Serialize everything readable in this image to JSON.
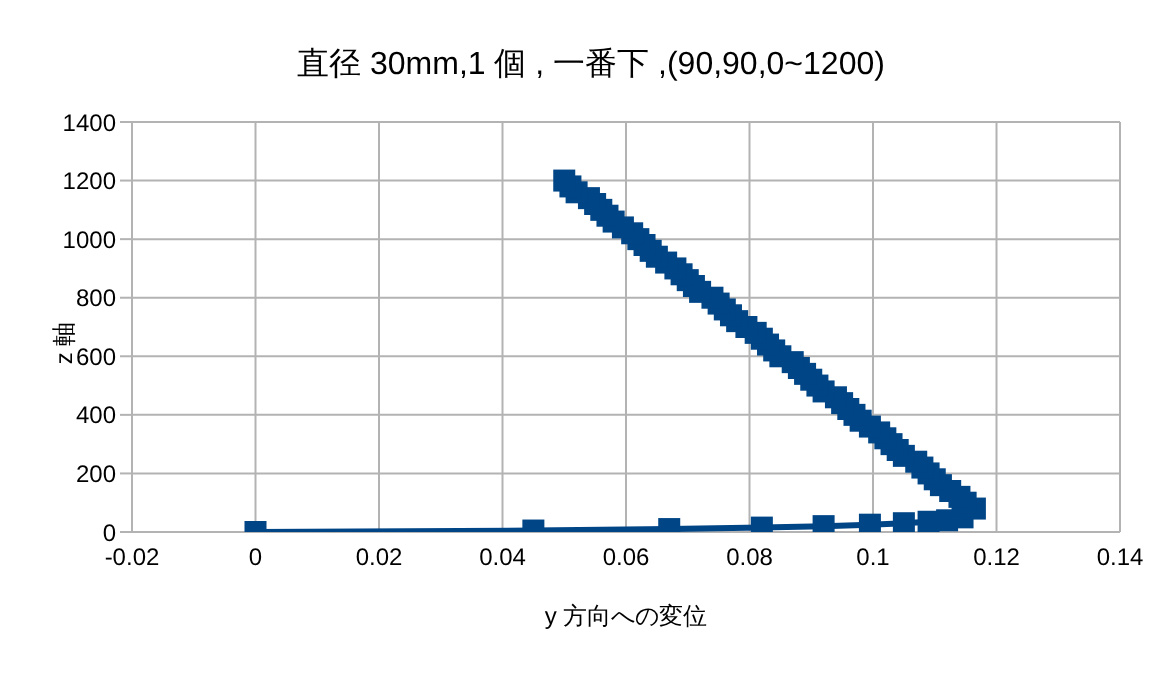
{
  "chart_data": {
    "type": "line",
    "title": "直径 30mm,1 個 , 一番下 ,(90,90,0~1200)",
    "xlabel": "y 方向への変位",
    "ylabel": "z 軸",
    "x": [
      0,
      0.045,
      0.067,
      0.082,
      0.092,
      0.0995,
      0.105,
      0.109,
      0.112,
      0.1145,
      0.1165,
      0.115,
      0.114,
      0.1125,
      0.111,
      0.11,
      0.109,
      0.108,
      0.107,
      0.105,
      0.104,
      0.103,
      0.102,
      0.101,
      0.0995,
      0.098,
      0.097,
      0.096,
      0.095,
      0.094,
      0.092,
      0.091,
      0.09,
      0.089,
      0.088,
      0.087,
      0.085,
      0.084,
      0.083,
      0.082,
      0.081,
      0.0795,
      0.078,
      0.077,
      0.076,
      0.075,
      0.074,
      0.072,
      0.071,
      0.07,
      0.069,
      0.068,
      0.0665,
      0.065,
      0.064,
      0.063,
      0.062,
      0.061,
      0.0595,
      0.058,
      0.057,
      0.056,
      0.055,
      0.054,
      0.052,
      0.051,
      0.05
    ],
    "series": [
      {
        "color": "#004586",
        "values": [
          0,
          5,
          10,
          15,
          20,
          25,
          30,
          35,
          40,
          50,
          80,
          100,
          120,
          140,
          160,
          180,
          200,
          220,
          240,
          260,
          280,
          300,
          320,
          340,
          360,
          380,
          400,
          420,
          440,
          460,
          480,
          500,
          520,
          540,
          560,
          580,
          600,
          620,
          640,
          660,
          680,
          700,
          720,
          740,
          760,
          780,
          800,
          820,
          840,
          860,
          880,
          900,
          920,
          940,
          960,
          980,
          1000,
          1020,
          1040,
          1060,
          1080,
          1100,
          1120,
          1140,
          1160,
          1180,
          1200
        ]
      }
    ],
    "xlim": [
      -0.02,
      0.14
    ],
    "xticks": [
      -0.02,
      0,
      0.02,
      0.04,
      0.06,
      0.08,
      0.1,
      0.12,
      0.14
    ],
    "ylim": [
      0,
      1400
    ],
    "yticks": [
      0,
      200,
      400,
      600,
      800,
      1000,
      1200,
      1400
    ],
    "grid": true,
    "marker": "square",
    "line_style": "solid"
  }
}
